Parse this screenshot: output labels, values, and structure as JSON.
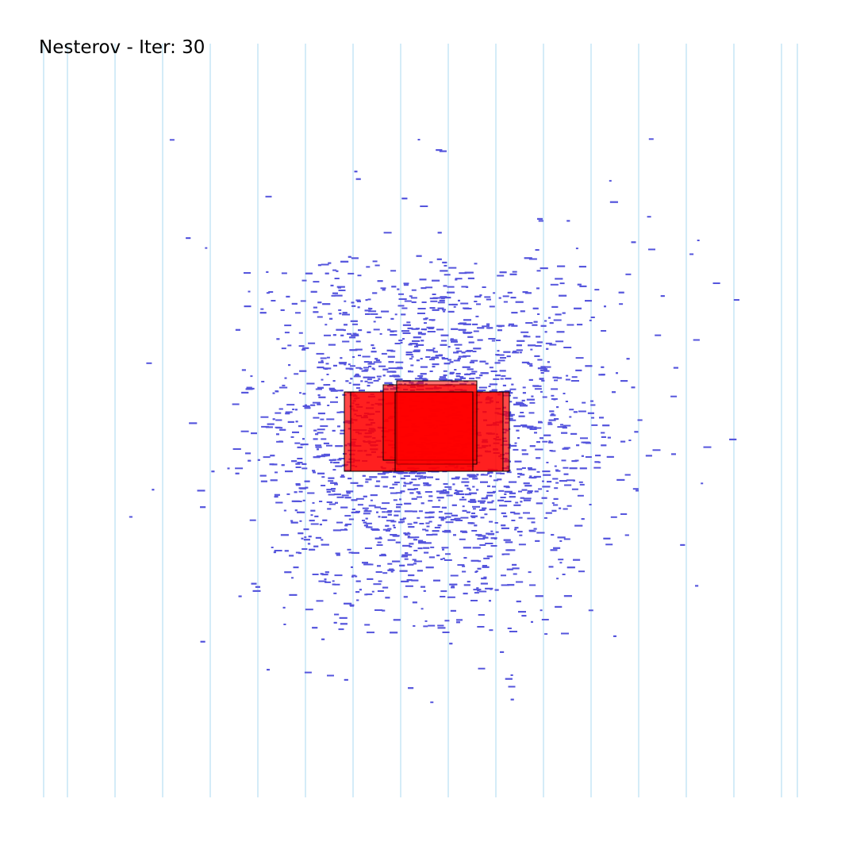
{
  "title": {
    "algorithm": "Nesterov",
    "separator": " - ",
    "iter_label": "Iter:",
    "iter_value": "30"
  },
  "colors": {
    "background": "#ffffff",
    "row_line": "#a8d8f0",
    "cell": "#5555dd",
    "macro_fill": "#ff0000",
    "macro_stroke": "#000000",
    "title_text": "#000000"
  },
  "legend": []
}
